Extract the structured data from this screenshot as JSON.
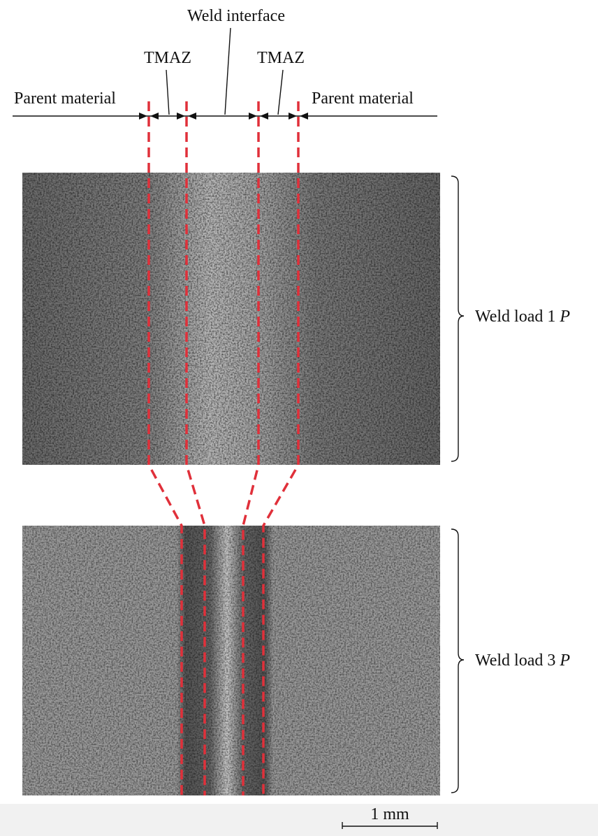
{
  "header": {
    "title": "Weld interface"
  },
  "zones": {
    "tmaz_left": "TMAZ",
    "tmaz_right": "TMAZ",
    "parent_left": "Parent material",
    "parent_right": "Parent material"
  },
  "panels": [
    {
      "label": "Weld load 1",
      "symbol": "P"
    },
    {
      "label": "Weld load 3",
      "symbol": "P"
    }
  ],
  "scale_bar": "1 mm"
}
